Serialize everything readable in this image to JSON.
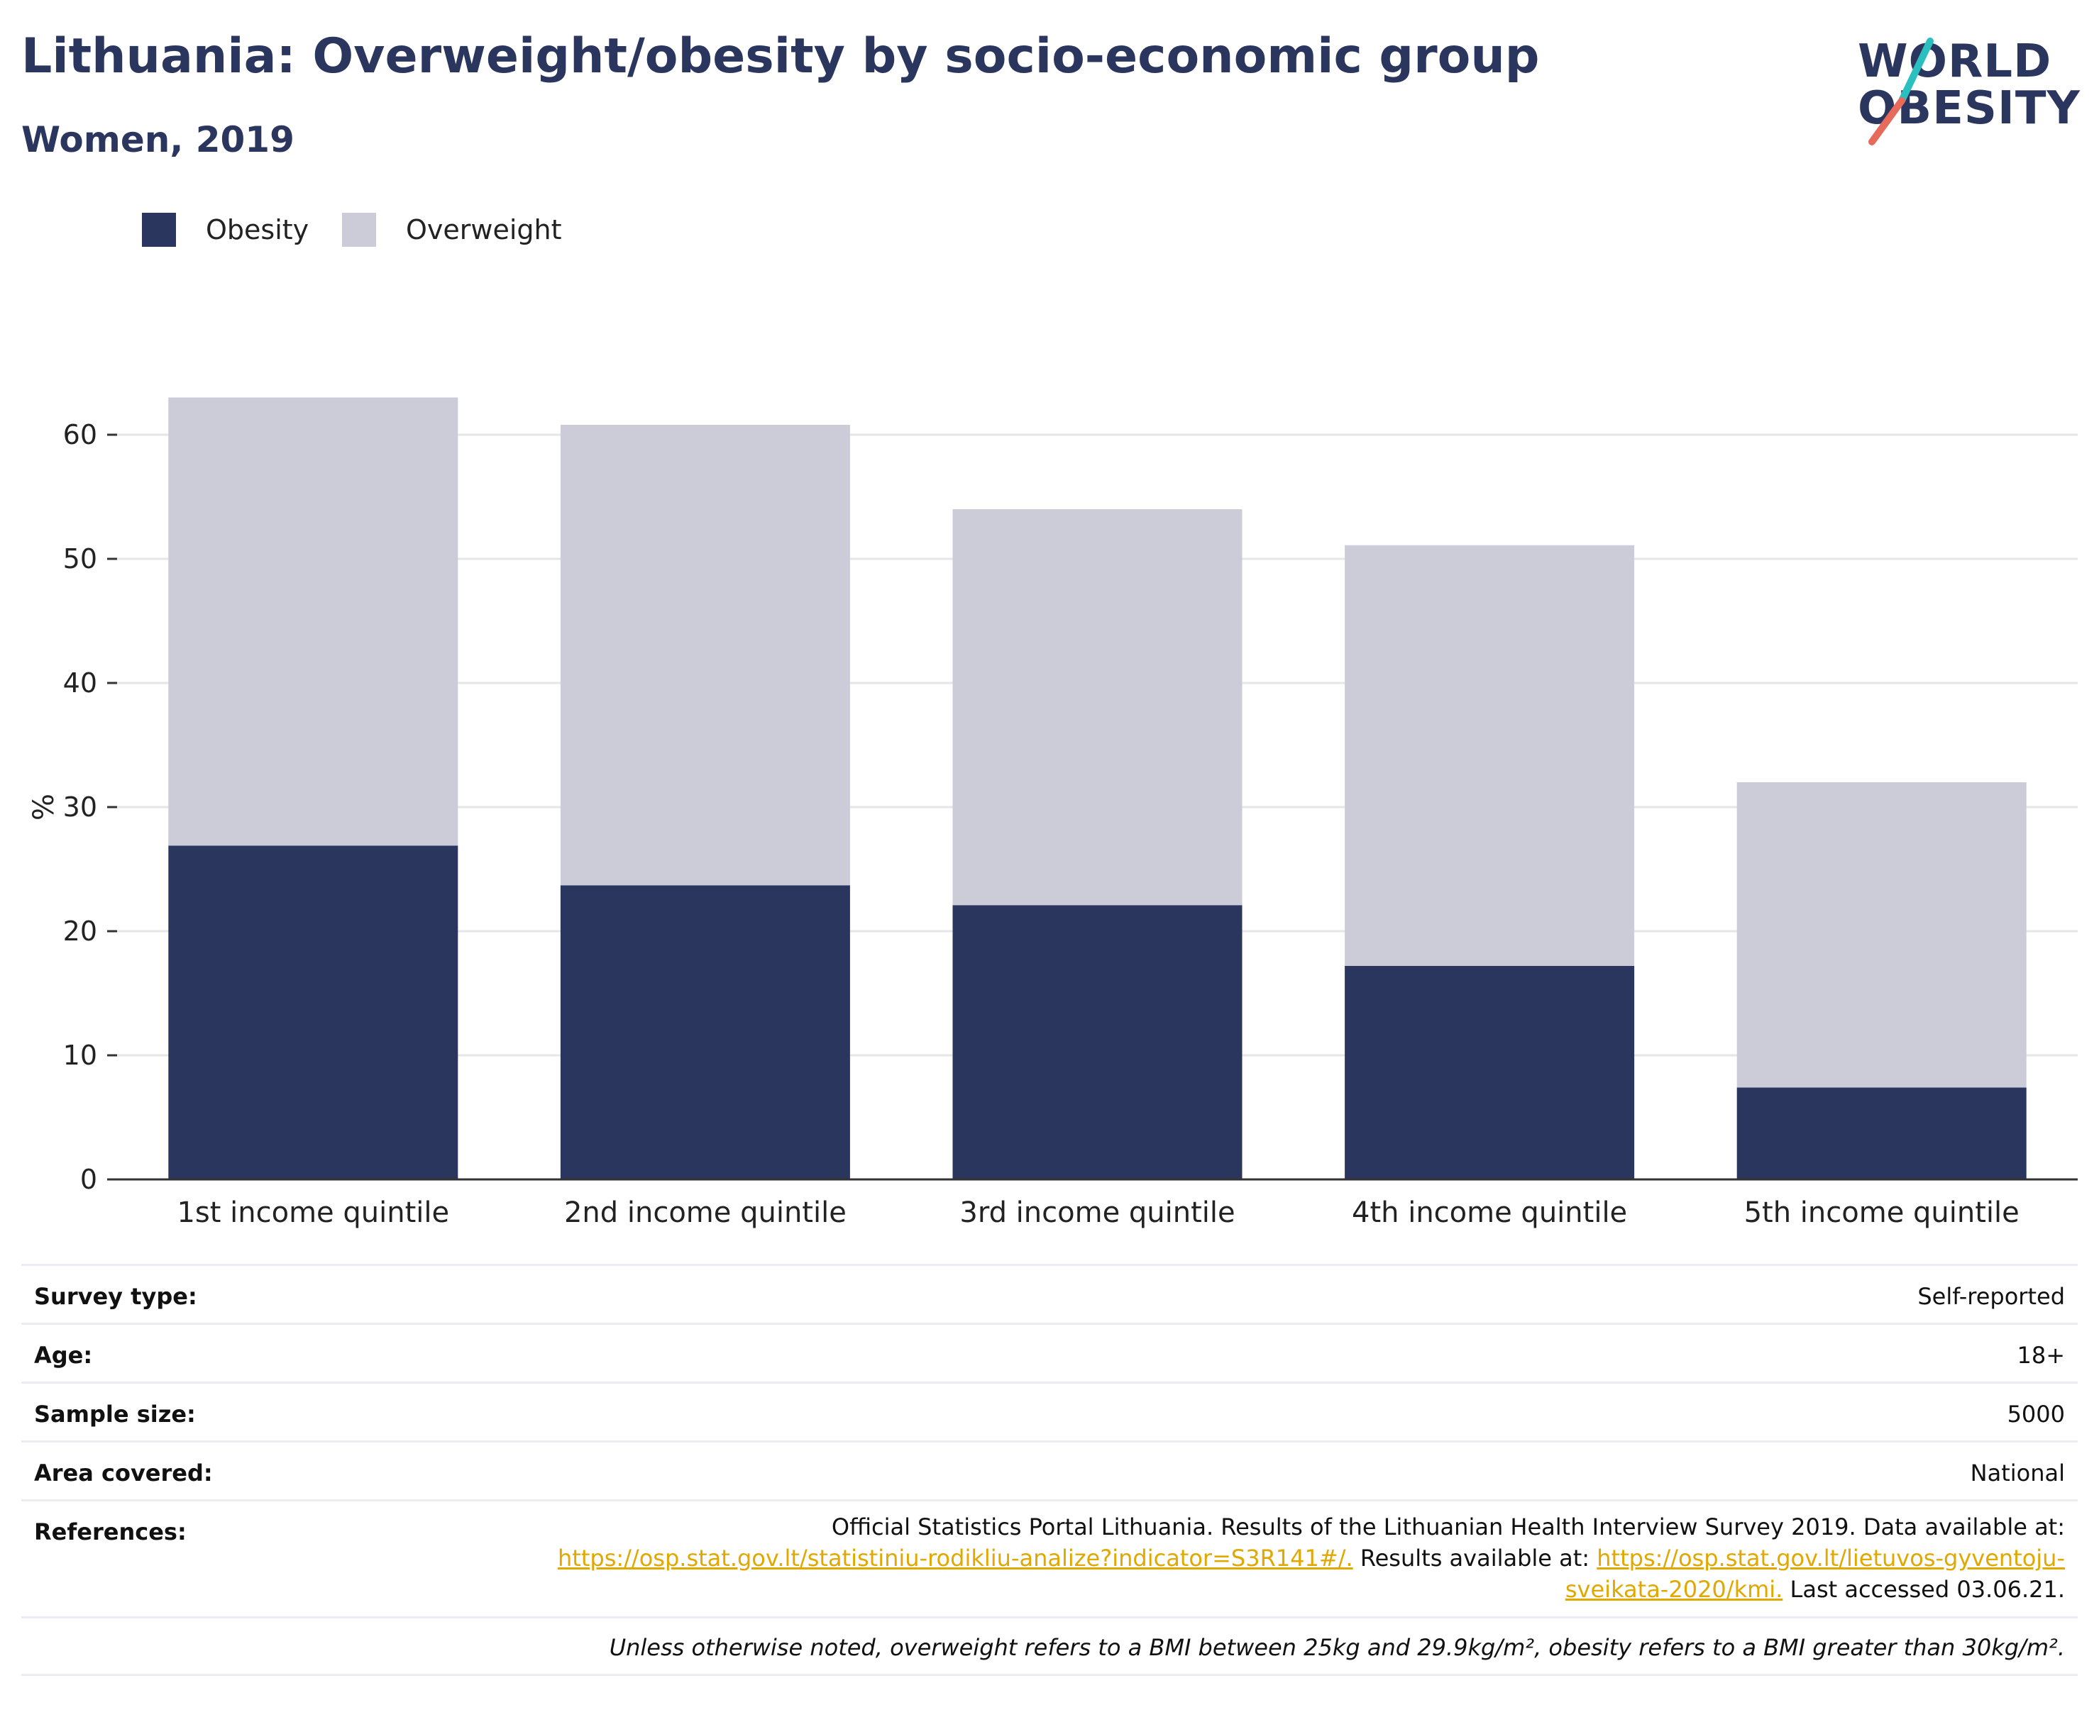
{
  "header": {
    "title": "Lithuania: Overweight/obesity by socio-economic group",
    "subtitle": "Women, 2019"
  },
  "logo": {
    "line1": "WORLD",
    "line2": "OBESITY",
    "accent_colors": [
      "#2bbfbf",
      "#e86a5a"
    ]
  },
  "colors": {
    "obesity": "#2b365f",
    "overweight": "#cbccd8",
    "link": "#e0a800",
    "title": "#2b365f"
  },
  "chart_data": {
    "type": "bar",
    "stacked": true,
    "categories": [
      "1st income quintile",
      "2nd income quintile",
      "3rd income quintile",
      "4th income quintile",
      "5th income quintile"
    ],
    "series": [
      {
        "name": "Obesity",
        "values": [
          26.9,
          23.7,
          22.1,
          17.2,
          7.4
        ]
      },
      {
        "name": "Overweight",
        "values": [
          36.1,
          37.1,
          31.9,
          33.9,
          24.6
        ]
      }
    ],
    "totals": [
      63.0,
      60.8,
      54.0,
      51.1,
      32.0
    ],
    "ylabel": "%",
    "ylim": [
      0,
      63
    ],
    "yticks": [
      "0",
      "10",
      "20",
      "30",
      "40",
      "50",
      "60"
    ],
    "grid": true,
    "legend_position": "top-left"
  },
  "info": {
    "rows": [
      {
        "key": "Survey type:",
        "value": "Self-reported"
      },
      {
        "key": "Age:",
        "value": "18+"
      },
      {
        "key": "Sample size:",
        "value": "5000"
      },
      {
        "key": "Area covered:",
        "value": "National"
      }
    ],
    "references": {
      "key": "References:",
      "line1": "Official Statistics Portal Lithuania. Results of the Lithuanian Health Interview Survey 2019. Data available at:",
      "link1": "https://osp.stat.gov.lt/statistiniu-rodikliu-analize?indicator=S3R141#/.",
      "mid": " Results available at: ",
      "link2a": "https://osp.stat.gov.lt/lietuvos-gyventoju-",
      "link2b": "sveikata-2020/kmi.",
      "tail": " Last accessed 03.06.21."
    },
    "note": "Unless otherwise noted, overweight refers to a BMI between 25kg and 29.9kg/m², obesity refers to a BMI greater than 30kg/m²."
  }
}
